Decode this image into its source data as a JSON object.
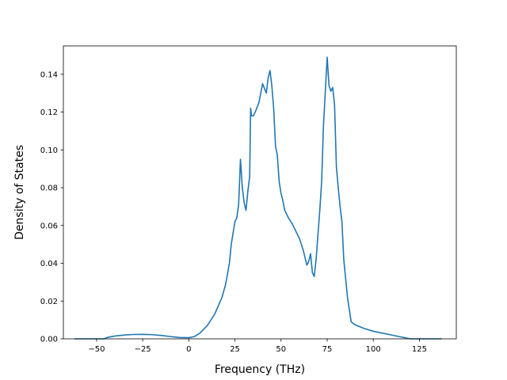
{
  "chart_data": {
    "type": "line",
    "title": "",
    "xlabel": "Frequency (THz)",
    "ylabel": "Density of States",
    "xlim": [
      -68,
      145
    ],
    "ylim": [
      0,
      0.155
    ],
    "grid": false,
    "color": "#1f77b4",
    "xticks": [
      {
        "value": -50,
        "label": "−50"
      },
      {
        "value": -25,
        "label": "−25"
      },
      {
        "value": 0,
        "label": "0"
      },
      {
        "value": 25,
        "label": "25"
      },
      {
        "value": 50,
        "label": "50"
      },
      {
        "value": 75,
        "label": "75"
      },
      {
        "value": 100,
        "label": "100"
      },
      {
        "value": 125,
        "label": "125"
      }
    ],
    "yticks": [
      {
        "value": 0,
        "label": "0.00"
      },
      {
        "value": 0.02,
        "label": "0.02"
      },
      {
        "value": 0.04,
        "label": "0.04"
      },
      {
        "value": 0.06,
        "label": "0.06"
      },
      {
        "value": 0.08,
        "label": "0.08"
      },
      {
        "value": 0.1,
        "label": "0.10"
      },
      {
        "value": 0.12,
        "label": "0.12"
      },
      {
        "value": 0.14,
        "label": "0.14"
      }
    ],
    "series": [
      {
        "x": [
          -62,
          -46,
          -44,
          -40,
          -35,
          -30,
          -25,
          -20,
          -15,
          -10,
          -5,
          0,
          3,
          6,
          10,
          14,
          18,
          20,
          22,
          23,
          25,
          26,
          27,
          28,
          29,
          30,
          31,
          32,
          33,
          33.5,
          34,
          35,
          36,
          38,
          40,
          42,
          43,
          44,
          45,
          46,
          47,
          48,
          49,
          50,
          51,
          52,
          53,
          54,
          56,
          58,
          60,
          62,
          64,
          65,
          66,
          67,
          68,
          69,
          70,
          71,
          72,
          73,
          74,
          75,
          76,
          77,
          78,
          79,
          80,
          81,
          82,
          83,
          84,
          85,
          86,
          88,
          90,
          95,
          100,
          105,
          110,
          115,
          120,
          137
        ],
        "y": [
          0,
          0,
          0.0008,
          0.0015,
          0.002,
          0.0023,
          0.0024,
          0.0022,
          0.0018,
          0.0012,
          0.0007,
          0.0006,
          0.0012,
          0.003,
          0.007,
          0.013,
          0.022,
          0.029,
          0.04,
          0.05,
          0.062,
          0.064,
          0.071,
          0.095,
          0.08,
          0.072,
          0.068,
          0.078,
          0.086,
          0.122,
          0.118,
          0.118,
          0.12,
          0.125,
          0.135,
          0.13,
          0.138,
          0.142,
          0.134,
          0.122,
          0.102,
          0.097,
          0.083,
          0.077,
          0.073,
          0.068,
          0.066,
          0.064,
          0.061,
          0.057,
          0.053,
          0.047,
          0.039,
          0.041,
          0.045,
          0.035,
          0.033,
          0.042,
          0.055,
          0.068,
          0.083,
          0.113,
          0.131,
          0.149,
          0.134,
          0.131,
          0.133,
          0.124,
          0.091,
          0.08,
          0.07,
          0.062,
          0.042,
          0.032,
          0.022,
          0.009,
          0.0075,
          0.0055,
          0.004,
          0.003,
          0.002,
          0.001,
          0,
          0
        ]
      }
    ]
  }
}
